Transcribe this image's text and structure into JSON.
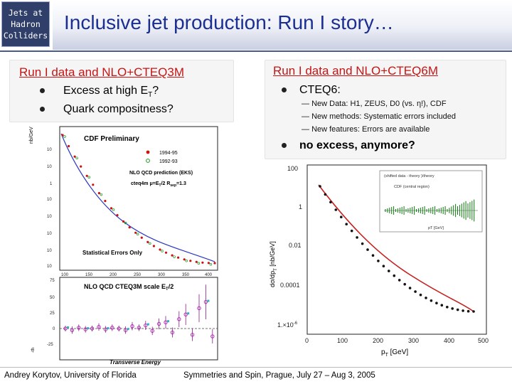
{
  "badge": {
    "lines": [
      "Jets at",
      "Hadron",
      "Colliders"
    ]
  },
  "title": "Inclusive jet production: Run I story…",
  "left": {
    "heading": "Run I data and NLO+CTEQ3M",
    "bullets": [
      "Excess at high E",
      "Quark compositness?"
    ],
    "bullet1_sub": "T",
    "bullet1_tail": "?"
  },
  "right": {
    "heading": "Run I data and NLO+CTEQ6M",
    "bullet_main": "CTEQ6:",
    "sub_items": [
      "New Data:  H1, ZEUS, D0 (vs. η!), CDF",
      "New methods: Systematic errors included",
      "New features: Errors are available"
    ],
    "bullet_final": "no excess, anymore?"
  },
  "left_plot": {
    "top_labels": {
      "prelim": "CDF Preliminary",
      "legend_a": "1994-95",
      "legend_b": "1992-93",
      "theory": "NLO QCD prediction (EKS)",
      "params": "cteq4m  μ=E",
      "params_sub": "T",
      "params_tail": "/2  R",
      "params_sub2": "sep",
      "params_tail2": "=1.3",
      "stat": "Statistical Errors Only",
      "ylabel": "nb/GeV"
    },
    "top_yticks": [
      "10",
      "10",
      "1",
      "10",
      "10",
      "10",
      "10",
      "10"
    ],
    "top_xticks": [
      "100",
      "150",
      "200",
      "250",
      "300",
      "350",
      "400"
    ],
    "bottom_labels": {
      "title": "NLO QCD CTEQ3M  scale E",
      "title_sub": "T",
      "title_tail": "/2",
      "xlabel": "Transverse Energy",
      "ylabel_frag": "-th"
    },
    "bottom_yticks": [
      "75",
      "50",
      "25",
      "0",
      "-25"
    ]
  },
  "right_plot": {
    "yticks": [
      "100",
      "1",
      "0.01",
      "0.0001",
      "1.×10"
    ],
    "ytick_exp": "-6",
    "xticks": [
      "0",
      "100",
      "200",
      "300",
      "400",
      "500"
    ],
    "xlabel": "p",
    "xlabel_sub": "T",
    "xlabel_tail": " [GeV]",
    "ylabel": "dσ/dp",
    "ylabel_sub": "T",
    "ylabel_tail": " [nb/GeV]",
    "inset_title": "(shifted data - theory )/theory",
    "inset_label": "CDF (central region)",
    "inset_xlabel": "pT [GeV]"
  },
  "colors": {
    "title": "#1b2f93",
    "heading": "#c61515",
    "band": "#0e7a0e",
    "fit": "#c62020"
  },
  "footer": {
    "left": "Andrey Korytov, University of Florida",
    "right": "Symmetries and Spin, Prague, July 27 – Aug 3, 2005"
  }
}
